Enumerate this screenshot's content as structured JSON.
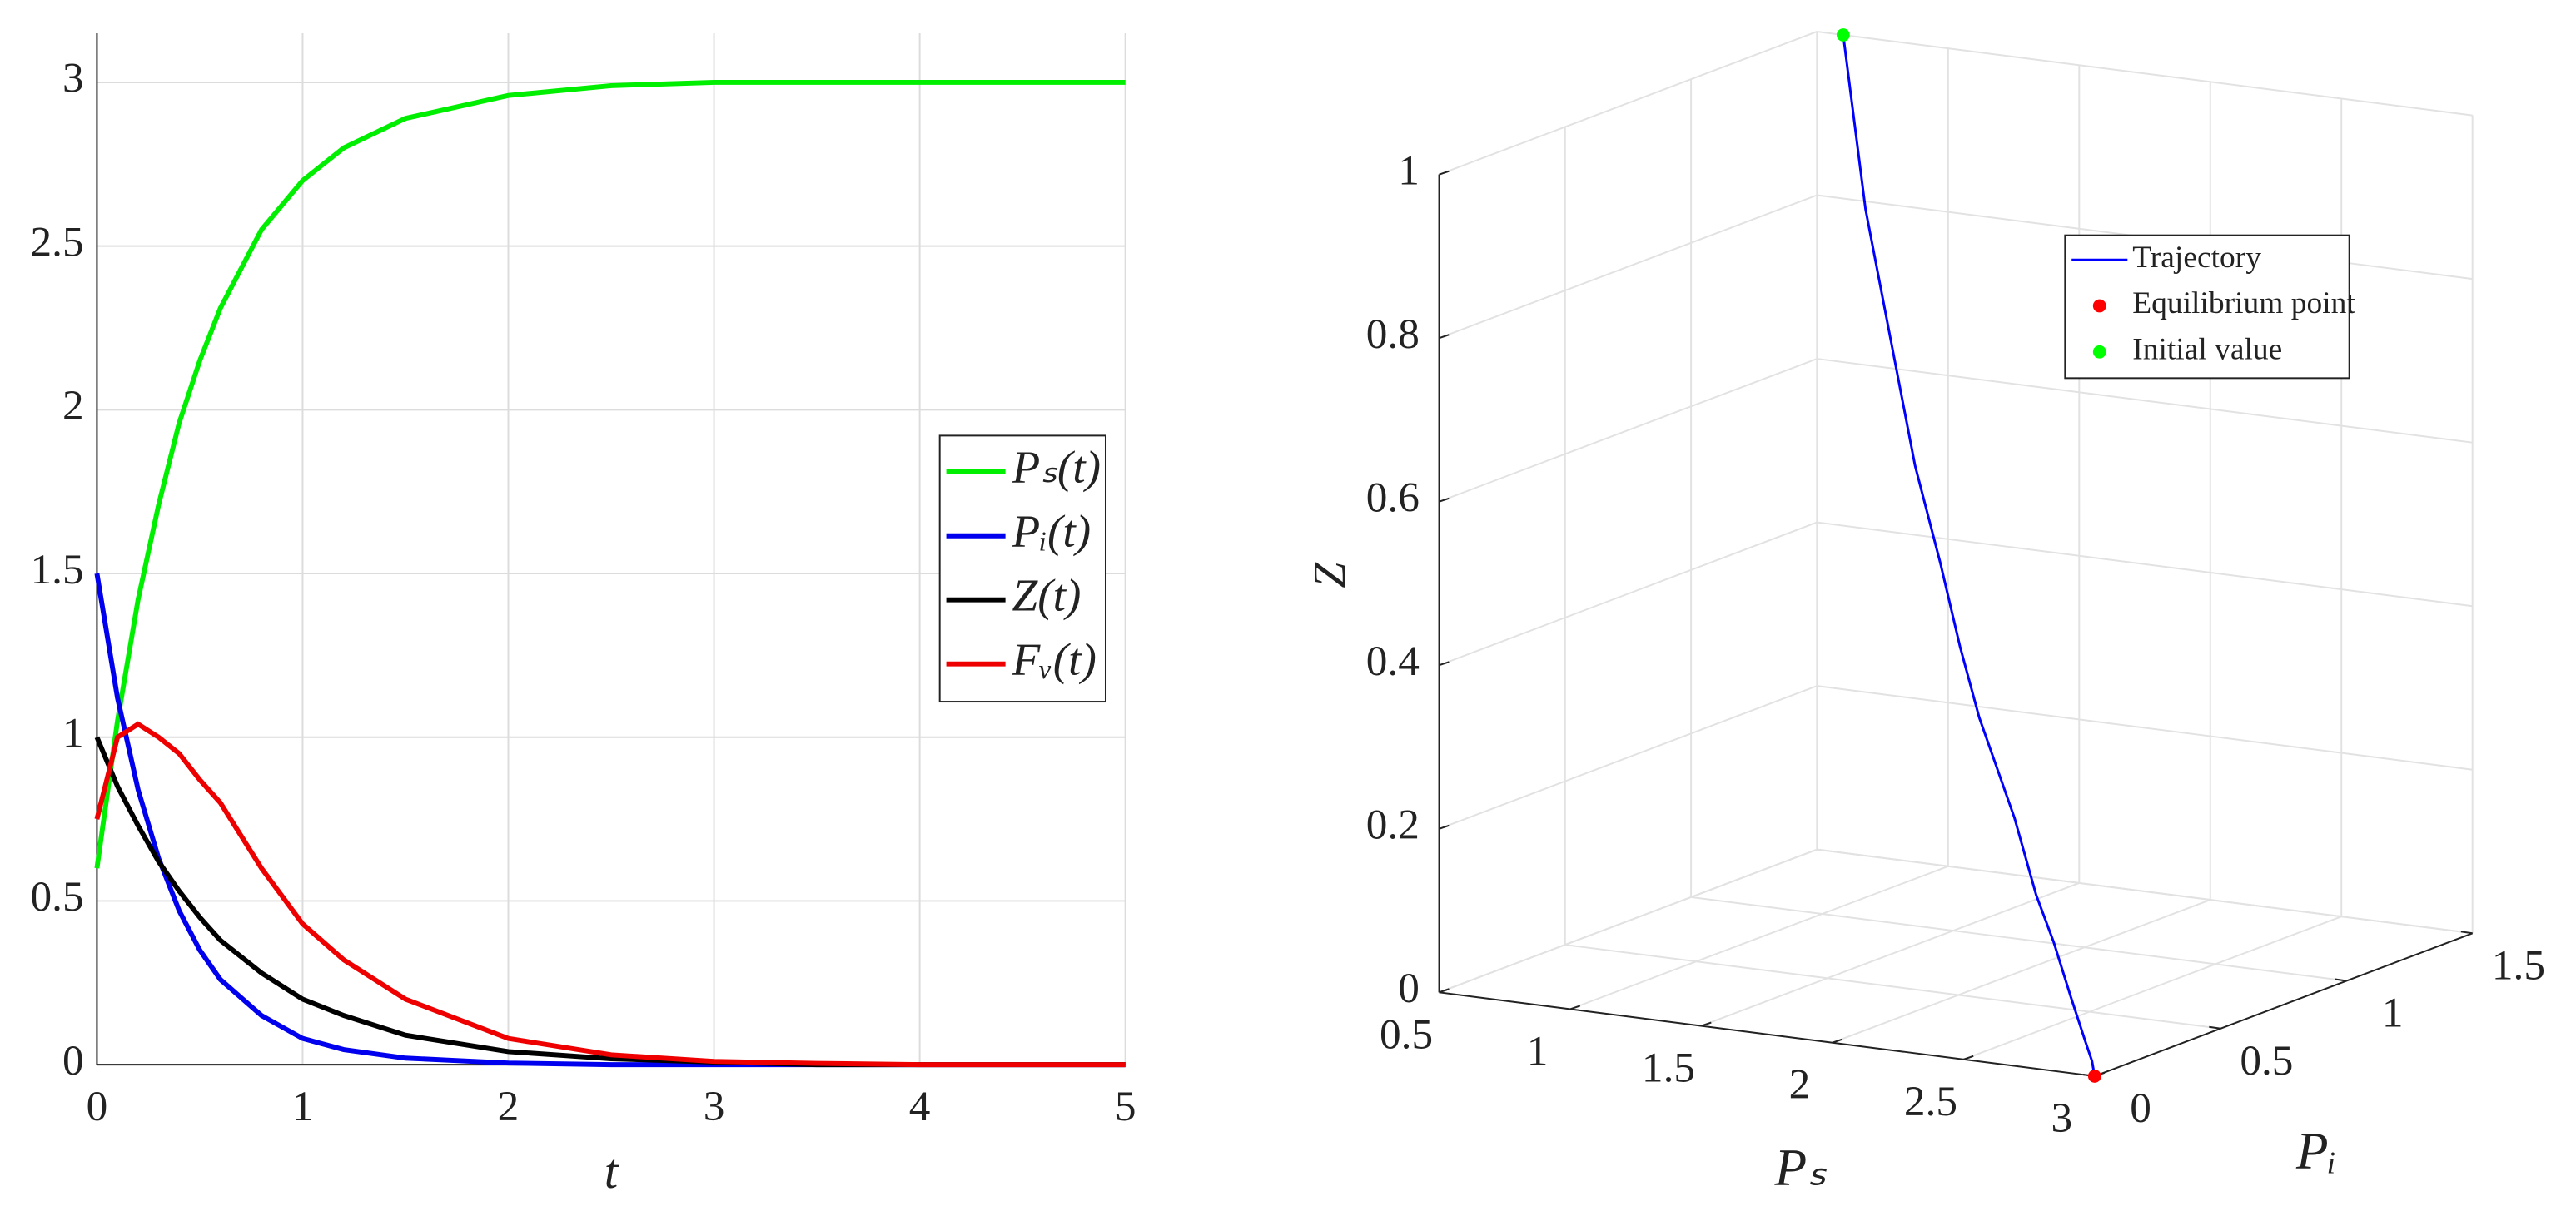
{
  "chart_data": [
    {
      "type": "line",
      "xlabel": "t",
      "x": [
        0,
        0.1,
        0.2,
        0.3,
        0.4,
        0.5,
        0.6,
        0.8,
        1,
        1.2,
        1.5,
        2,
        2.5,
        3,
        3.5,
        4,
        4.5,
        5
      ],
      "series": [
        {
          "name": "Pₛ(t)",
          "color": "#00ee00",
          "values": [
            0.6,
            1.05,
            1.42,
            1.71,
            1.96,
            2.15,
            2.31,
            2.55,
            2.7,
            2.8,
            2.89,
            2.96,
            2.99,
            3.0,
            3.0,
            3.0,
            3.0,
            3.0
          ]
        },
        {
          "name": "Pᵢ(t)",
          "color": "#0000ee",
          "values": [
            1.5,
            1.12,
            0.84,
            0.63,
            0.47,
            0.35,
            0.26,
            0.15,
            0.08,
            0.046,
            0.02,
            0.005,
            0,
            0,
            0,
            0,
            0,
            0
          ]
        },
        {
          "name": "Z(t)",
          "color": "#000000",
          "values": [
            1,
            0.85,
            0.73,
            0.62,
            0.53,
            0.45,
            0.38,
            0.28,
            0.2,
            0.15,
            0.09,
            0.04,
            0.018,
            0.008,
            0,
            0,
            0,
            0
          ]
        },
        {
          "name": "Fᵥ(t)",
          "color": "#ee0000",
          "values": [
            0.75,
            1.0,
            1.04,
            1.0,
            0.95,
            0.87,
            0.8,
            0.6,
            0.43,
            0.32,
            0.2,
            0.08,
            0.03,
            0.01,
            0.004,
            0,
            0,
            0
          ]
        }
      ],
      "xlim": [
        0,
        5
      ],
      "ylim": [
        0,
        3.15
      ],
      "xticks": [
        0,
        1,
        2,
        3,
        4,
        5
      ],
      "yticks": [
        0,
        0.5,
        1,
        1.5,
        2,
        2.5,
        3
      ],
      "grid": true,
      "legend": "right"
    },
    {
      "type": "line3d",
      "xlabel": "Pₛ",
      "ylabel": "Pᵢ",
      "zlabel": "Z",
      "series": [
        {
          "name": "Trajectory",
          "color": "#0000ff",
          "x": [
            0.6,
            1.05,
            1.42,
            1.71,
            1.96,
            2.15,
            2.31,
            2.55,
            2.7,
            2.8,
            2.89,
            2.96,
            2.99,
            3.0
          ],
          "y": [
            1.5,
            1.12,
            0.84,
            0.63,
            0.47,
            0.35,
            0.26,
            0.15,
            0.08,
            0.046,
            0.02,
            0.005,
            0,
            0
          ],
          "z": [
            1,
            0.85,
            0.73,
            0.62,
            0.53,
            0.45,
            0.38,
            0.28,
            0.2,
            0.15,
            0.09,
            0.04,
            0.018,
            0
          ]
        }
      ],
      "points": [
        {
          "name": "Equilibrium point",
          "color": "#ff0000",
          "x": 3,
          "y": 0,
          "z": 0
        },
        {
          "name": "Initial value",
          "color": "#00ff00",
          "x": 0.6,
          "y": 1.5,
          "z": 1
        }
      ],
      "xlim": [
        0.5,
        3
      ],
      "ylim": [
        0,
        1.5
      ],
      "zlim": [
        0,
        1
      ],
      "xticks": [
        0.5,
        1,
        1.5,
        2,
        2.5,
        3
      ],
      "yticks": [
        0,
        0.5,
        1,
        1.5
      ],
      "zticks": [
        0,
        0.2,
        0.4,
        0.6,
        0.8,
        1
      ],
      "grid": true
    }
  ]
}
